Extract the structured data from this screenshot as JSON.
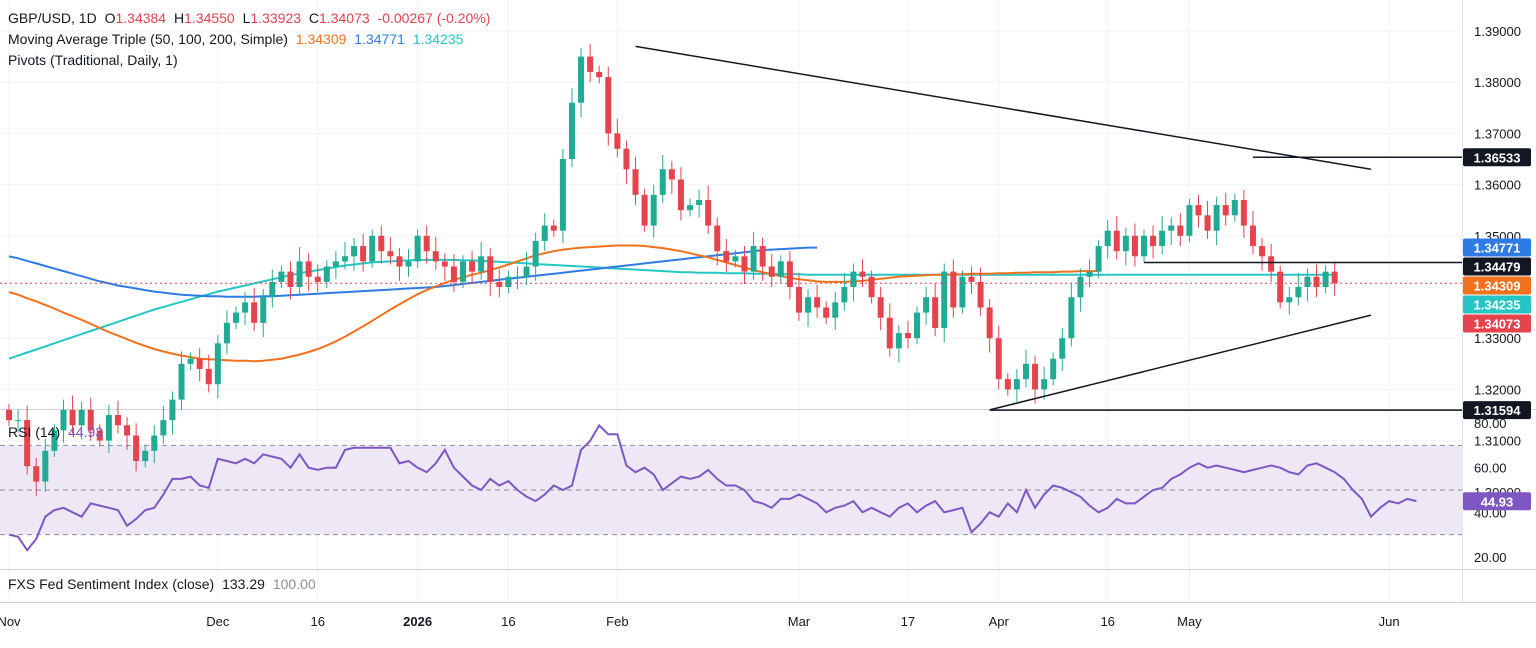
{
  "header": {
    "symbol": "GBP/USD, 1D",
    "open_label": "O",
    "open": "1.34384",
    "high_label": "H",
    "high": "1.34550",
    "low_label": "L",
    "low": "1.33923",
    "close_label": "C",
    "close": "1.34073",
    "change": "-0.00267 (-0.20%)",
    "ma_label": "Moving Average Triple (50, 100, 200, Simple)",
    "ma50": "1.34309",
    "ma100": "1.34771",
    "ma200": "1.34235",
    "pivots_label": "Pivots (Traditional, Daily, 1)"
  },
  "rsi_panel": {
    "label": "RSI (14)",
    "value": "44.93"
  },
  "fxs_panel": {
    "label": "FXS Fed Sentiment Index (close)",
    "value": "133.29",
    "value2": "100.00"
  },
  "colors": {
    "up": "#22ab94",
    "down": "#e5434d",
    "ma50": "#f2711c",
    "ma100": "#2f7be6",
    "ma200": "#26c6c6",
    "rsi": "#7e57c2",
    "rsi_band": "#ede7f6",
    "grid": "#f0f3fa",
    "text": "#131722"
  },
  "chart_data": [
    {
      "type": "candlestick",
      "ylim": [
        1.2955,
        1.3935
      ],
      "yticks": [
        "1.39000",
        "1.38000",
        "1.37000",
        "1.36000",
        "1.35000",
        "1.34000",
        "1.33000",
        "1.32000",
        "1.31000",
        "1.30000"
      ],
      "xticks": [
        {
          "label": "Nov",
          "i": 0
        },
        {
          "label": "Dec",
          "i": 23
        },
        {
          "label": "16",
          "i": 34
        },
        {
          "label": "2026",
          "i": 45
        },
        {
          "label": "16",
          "i": 55
        },
        {
          "label": "Feb",
          "i": 67
        },
        {
          "label": "Mar",
          "i": 87
        },
        {
          "label": "17",
          "i": 99
        },
        {
          "label": "Apr",
          "i": 109
        },
        {
          "label": "16",
          "i": 121
        },
        {
          "label": "May",
          "i": 130
        },
        {
          "label": "Jun",
          "i": 152
        }
      ],
      "price_labels": [
        {
          "text": "1.36533",
          "value": 1.36533,
          "bg": "#131722"
        },
        {
          "text": "1.34771",
          "value": 1.34771,
          "bg": "#2f7be6"
        },
        {
          "text": "1.34479",
          "value": 1.34479,
          "bg": "#131722"
        },
        {
          "text": "1.34309",
          "value": 1.34309,
          "bg": "#f2711c"
        },
        {
          "text": "1.34235",
          "value": 1.34235,
          "bg": "#26c6c6"
        },
        {
          "text": "1.34073",
          "value": 1.34073,
          "bg": "#e5434d"
        },
        {
          "text": "1.31594",
          "value": 1.31594,
          "bg": "#131722"
        }
      ],
      "trendlines": [
        {
          "i1": 69,
          "v1": 1.387,
          "i2": 150,
          "v2": 1.363
        },
        {
          "i1": 108,
          "v1": 1.316,
          "i2": 150,
          "v2": 1.3345
        }
      ],
      "levels": [
        {
          "value": 1.36533,
          "i1": 137,
          "i2": 158
        },
        {
          "value": 1.34479,
          "i1": 125,
          "i2": 158
        },
        {
          "value": 1.31594,
          "i1": 108,
          "i2": 158
        }
      ],
      "current_price": 1.34073,
      "closes": [
        1.314,
        1.314,
        1.305,
        1.302,
        1.308,
        1.312,
        1.316,
        1.313,
        1.316,
        1.312,
        1.31,
        1.315,
        1.313,
        1.311,
        1.306,
        1.308,
        1.311,
        1.314,
        1.318,
        1.325,
        1.326,
        1.324,
        1.321,
        1.329,
        1.333,
        1.335,
        1.337,
        1.333,
        1.338,
        1.341,
        1.343,
        1.34,
        1.345,
        1.342,
        1.341,
        1.344,
        1.345,
        1.346,
        1.348,
        1.345,
        1.35,
        1.347,
        1.346,
        1.344,
        1.345,
        1.35,
        1.347,
        1.345,
        1.344,
        1.341,
        1.345,
        1.343,
        1.346,
        1.341,
        1.34,
        1.342,
        1.342,
        1.344,
        1.349,
        1.352,
        1.351,
        1.365,
        1.376,
        1.385,
        1.382,
        1.381,
        1.37,
        1.367,
        1.363,
        1.358,
        1.352,
        1.358,
        1.363,
        1.361,
        1.355,
        1.356,
        1.357,
        1.352,
        1.347,
        1.345,
        1.346,
        1.343,
        1.348,
        1.344,
        1.342,
        1.345,
        1.34,
        1.335,
        1.338,
        1.336,
        1.334,
        1.337,
        1.34,
        1.343,
        1.342,
        1.338,
        1.334,
        1.328,
        1.331,
        1.33,
        1.335,
        1.338,
        1.332,
        1.343,
        1.336,
        1.342,
        1.341,
        1.336,
        1.33,
        1.322,
        1.32,
        1.322,
        1.325,
        1.32,
        1.322,
        1.326,
        1.33,
        1.338,
        1.342,
        1.343,
        1.348,
        1.351,
        1.347,
        1.35,
        1.346,
        1.35,
        1.348,
        1.351,
        1.352,
        1.35,
        1.356,
        1.354,
        1.351,
        1.356,
        1.354,
        1.357,
        1.352,
        1.348,
        1.346,
        1.343,
        1.337,
        1.338,
        1.34,
        1.342,
        1.34,
        1.343,
        1.3407
      ],
      "ma50": [
        1.339,
        1.3385,
        1.3378,
        1.3372,
        1.3365,
        1.3358,
        1.335,
        1.3343,
        1.3336,
        1.3328,
        1.332,
        1.3312,
        1.3305,
        1.3298,
        1.3291,
        1.3285,
        1.3279,
        1.3274,
        1.327,
        1.3266,
        1.3263,
        1.326,
        1.3259,
        1.3258,
        1.3257,
        1.3256,
        1.3256,
        1.3255,
        1.3256,
        1.3258,
        1.326,
        1.3264,
        1.3268,
        1.3273,
        1.3279,
        1.3286,
        1.3294,
        1.3303,
        1.3313,
        1.3323,
        1.3334,
        1.3345,
        1.3356,
        1.3366,
        1.3376,
        1.3386,
        1.3394,
        1.3401,
        1.3408,
        1.3414,
        1.3419,
        1.3424,
        1.3428,
        1.3433,
        1.3438,
        1.3444,
        1.345,
        1.3456,
        1.3462,
        1.3466,
        1.347,
        1.3473,
        1.3475,
        1.3477,
        1.3478,
        1.3479,
        1.348,
        1.3481,
        1.3481,
        1.3481,
        1.348,
        1.3478,
        1.3476,
        1.3473,
        1.347,
        1.3466,
        1.3462,
        1.3458,
        1.3453,
        1.3448,
        1.3443,
        1.3438,
        1.3433,
        1.3429,
        1.3425,
        1.3421,
        1.3418,
        1.3415,
        1.3413,
        1.3411,
        1.341,
        1.341,
        1.341,
        1.3411,
        1.3412,
        1.3414,
        1.3416,
        1.3418,
        1.342,
        1.3421,
        1.3422,
        1.3423,
        1.3424,
        1.3424,
        1.3425,
        1.3425,
        1.3426,
        1.3426,
        1.3426,
        1.3427,
        1.3427,
        1.3428,
        1.3428,
        1.3429,
        1.3429,
        1.3429,
        1.343,
        1.343,
        1.3431,
        1.3431,
        1.3431
      ],
      "ma100": [
        1.346,
        1.3456,
        1.3451,
        1.3446,
        1.3441,
        1.3436,
        1.3431,
        1.3426,
        1.3421,
        1.3416,
        1.3411,
        1.3407,
        1.3403,
        1.34,
        1.3397,
        1.3394,
        1.3391,
        1.3389,
        1.3387,
        1.3385,
        1.3384,
        1.3383,
        1.3382,
        1.3382,
        1.3381,
        1.3381,
        1.3381,
        1.3381,
        1.3382,
        1.3382,
        1.3383,
        1.3384,
        1.3385,
        1.3386,
        1.3387,
        1.3388,
        1.3389,
        1.339,
        1.3391,
        1.3392,
        1.3393,
        1.3394,
        1.3395,
        1.3396,
        1.3397,
        1.3398,
        1.3399,
        1.34,
        1.3402,
        1.3404,
        1.3406,
        1.3408,
        1.341,
        1.3412,
        1.3414,
        1.3416,
        1.3418,
        1.342,
        1.3422,
        1.3424,
        1.3426,
        1.3428,
        1.343,
        1.3432,
        1.3434,
        1.3436,
        1.3438,
        1.344,
        1.3442,
        1.3444,
        1.3446,
        1.3448,
        1.345,
        1.3452,
        1.3454,
        1.3456,
        1.3458,
        1.346,
        1.3462,
        1.3464,
        1.3466,
        1.3468,
        1.347,
        1.3472,
        1.3473,
        1.3474,
        1.3475,
        1.3476,
        1.3477,
        1.3477
      ],
      "ma200": [
        1.326,
        1.3266,
        1.3272,
        1.3278,
        1.3284,
        1.329,
        1.3296,
        1.3302,
        1.3308,
        1.3314,
        1.332,
        1.3326,
        1.3332,
        1.3338,
        1.3344,
        1.335,
        1.3356,
        1.3361,
        1.3366,
        1.3371,
        1.3376,
        1.3381,
        1.3386,
        1.3391,
        1.3395,
        1.3399,
        1.3403,
        1.3407,
        1.3411,
        1.3415,
        1.3419,
        1.3423,
        1.3427,
        1.343,
        1.3433,
        1.3436,
        1.3439,
        1.3442,
        1.3444,
        1.3446,
        1.3448,
        1.3449,
        1.345,
        1.3451,
        1.3452,
        1.3453,
        1.3453,
        1.3453,
        1.3453,
        1.3453,
        1.3452,
        1.3452,
        1.3451,
        1.345,
        1.3449,
        1.3448,
        1.3447,
        1.3446,
        1.3445,
        1.3444,
        1.3443,
        1.3442,
        1.3441,
        1.344,
        1.3439,
        1.3438,
        1.3437,
        1.3436,
        1.3435,
        1.3434,
        1.3433,
        1.3432,
        1.3431,
        1.343,
        1.3429,
        1.3429,
        1.3428,
        1.3428,
        1.3428,
        1.3427,
        1.3427,
        1.3427,
        1.3426,
        1.3426,
        1.3426,
        1.3425,
        1.3425,
        1.3425,
        1.3424,
        1.3424,
        1.3424,
        1.3424,
        1.3424,
        1.3424,
        1.3424,
        1.3424,
        1.3424,
        1.3424,
        1.3424,
        1.3424,
        1.3424,
        1.3424,
        1.3424,
        1.3424,
        1.3424,
        1.3424,
        1.3424,
        1.3424,
        1.3424,
        1.3424,
        1.3424,
        1.3424,
        1.3424,
        1.3424,
        1.3424,
        1.3424,
        1.3424,
        1.3424,
        1.3424,
        1.3424,
        1.3424,
        1.3424,
        1.3424,
        1.3424,
        1.3424,
        1.3424,
        1.3424,
        1.3424,
        1.3424,
        1.3424,
        1.3424,
        1.3424,
        1.3424,
        1.3424,
        1.3424,
        1.3424,
        1.3424,
        1.3424,
        1.3424,
        1.3424,
        1.3424,
        1.3424,
        1.3424,
        1.3424,
        1.3424,
        1.3424,
        1.3424
      ]
    },
    {
      "type": "line",
      "title": "RSI (14)",
      "ylim": [
        15,
        85
      ],
      "yticks": [
        "80.00",
        "60.00",
        "40.00",
        "20.00"
      ],
      "bands": [
        70,
        50,
        30
      ],
      "current_value": 44.93,
      "values": [
        30,
        29,
        23,
        28,
        38,
        41,
        42,
        40,
        38,
        44,
        43,
        42,
        41,
        34,
        37,
        41,
        42,
        48,
        55,
        55,
        56,
        52,
        51,
        64,
        63,
        62,
        64,
        62,
        66,
        65,
        64,
        60,
        66,
        60,
        59,
        60,
        60,
        68,
        69,
        69,
        69,
        69,
        69,
        62,
        63,
        60,
        58,
        62,
        68,
        60,
        56,
        52,
        50,
        55,
        52,
        54,
        50,
        47,
        45,
        48,
        52,
        50,
        52,
        68,
        72,
        79,
        75,
        75,
        61,
        58,
        60,
        57,
        50,
        53,
        56,
        55,
        56,
        59,
        55,
        52,
        52,
        50,
        45,
        44,
        42,
        46,
        46,
        48,
        46,
        44,
        40,
        42,
        43,
        45,
        40,
        42,
        40,
        38,
        42,
        44,
        40,
        43,
        45,
        40,
        41,
        42,
        31,
        35,
        40,
        38,
        44,
        40,
        50,
        42,
        48,
        52,
        51,
        49,
        47,
        43,
        40,
        42,
        46,
        44,
        44,
        47,
        50,
        51,
        55,
        57,
        60,
        62,
        60,
        61,
        60,
        59,
        58,
        59,
        60,
        61,
        60,
        58,
        57,
        61,
        62,
        60,
        58,
        55,
        50,
        46,
        38,
        42,
        45,
        44,
        46,
        45
      ]
    }
  ]
}
